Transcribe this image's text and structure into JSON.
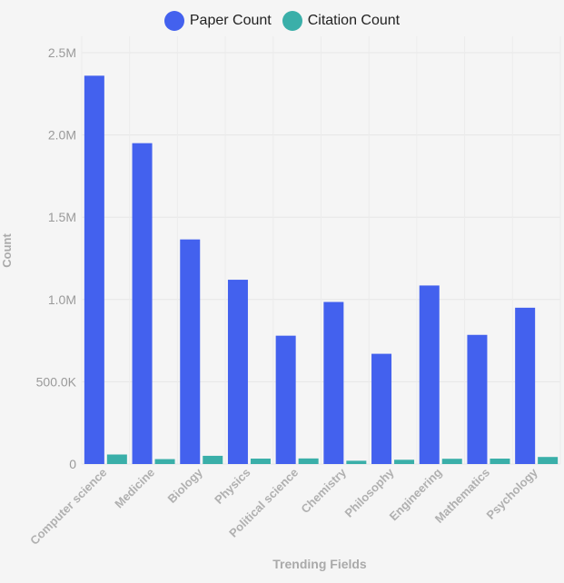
{
  "chart_data": {
    "type": "bar",
    "title": "",
    "xlabel": "Trending Fields",
    "ylabel": "Count",
    "ylim": [
      0,
      2500000
    ],
    "yticks": [
      0,
      500000,
      1000000,
      1500000,
      2000000,
      2500000
    ],
    "ytick_labels": [
      "0",
      "500.0K",
      "1.0M",
      "1.5M",
      "2.0M",
      "2.5M"
    ],
    "grid": true,
    "legend_position": "top-center",
    "categories": [
      "Computer science",
      "Medicine",
      "Biology",
      "Physics",
      "Political science",
      "Chemistry",
      "Philosophy",
      "Engineering",
      "Mathematics",
      "Psychology"
    ],
    "series": [
      {
        "name": "Paper Count",
        "color": "#4361ee",
        "values": [
          2360000,
          1950000,
          1365000,
          1120000,
          780000,
          985000,
          670000,
          1085000,
          785000,
          950000
        ]
      },
      {
        "name": "Citation Count",
        "color": "#3aafa9",
        "values": [
          58000,
          30000,
          50000,
          33000,
          34000,
          20000,
          26000,
          32000,
          33000,
          43000
        ]
      }
    ]
  }
}
